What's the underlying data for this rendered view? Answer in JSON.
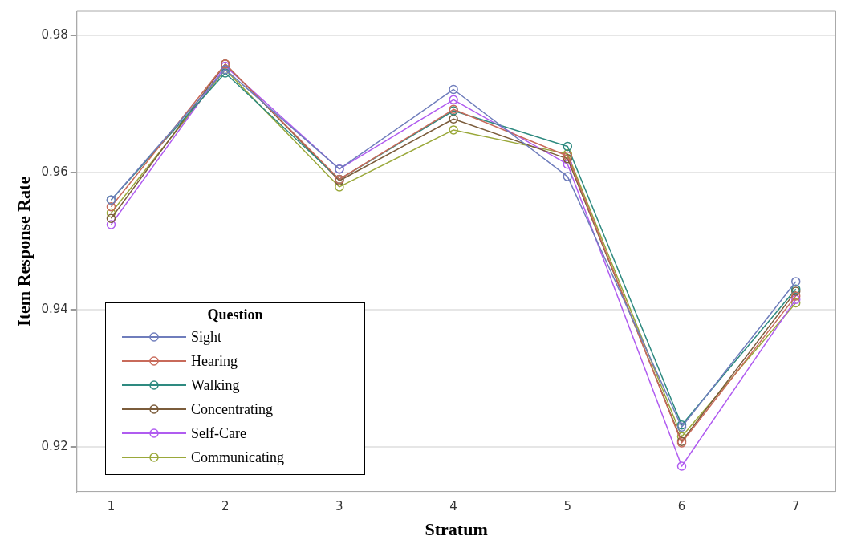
{
  "chart_data": {
    "type": "line",
    "xlabel": "Stratum",
    "ylabel": "Item Response Rate",
    "legend_title": "Question",
    "x": [
      1,
      2,
      3,
      4,
      5,
      6,
      7
    ],
    "series": [
      {
        "name": "Sight",
        "color": "#6f7dbc",
        "values": [
          0.956,
          0.975,
          0.9605,
          0.9721,
          0.9594,
          0.9229,
          0.9441
        ]
      },
      {
        "name": "Hearing",
        "color": "#c86a5a",
        "values": [
          0.955,
          0.9758,
          0.959,
          0.9692,
          0.9624,
          0.9206,
          0.942
        ]
      },
      {
        "name": "Walking",
        "color": "#2e8a80",
        "values": [
          0.956,
          0.9745,
          0.959,
          0.969,
          0.9638,
          0.9232,
          0.943
        ]
      },
      {
        "name": "Concentrating",
        "color": "#7b5c3b",
        "values": [
          0.9533,
          0.9758,
          0.9588,
          0.9678,
          0.962,
          0.9208,
          0.9427
        ]
      },
      {
        "name": "Self-Care",
        "color": "#b05cf0",
        "values": [
          0.9524,
          0.9755,
          0.9605,
          0.9706,
          0.9612,
          0.9172,
          0.9415
        ]
      },
      {
        "name": "Communicating",
        "color": "#9aa83a",
        "values": [
          0.9541,
          0.975,
          0.9579,
          0.9662,
          0.9627,
          0.9215,
          0.941
        ]
      }
    ],
    "xlim": [
      0.7,
      7.35
    ],
    "xticks": [
      1,
      2,
      3,
      4,
      5,
      6,
      7
    ],
    "ylim": [
      0.9135,
      0.9835
    ],
    "yticks": [
      {
        "value": 0.92,
        "label": "0.92"
      },
      {
        "value": 0.94,
        "label": "0.94"
      },
      {
        "value": 0.96,
        "label": "0.96"
      },
      {
        "value": 0.98,
        "label": "0.98"
      }
    ],
    "grid": "y",
    "legend": "bottom left",
    "marker": "circle",
    "line_style": "solid"
  }
}
